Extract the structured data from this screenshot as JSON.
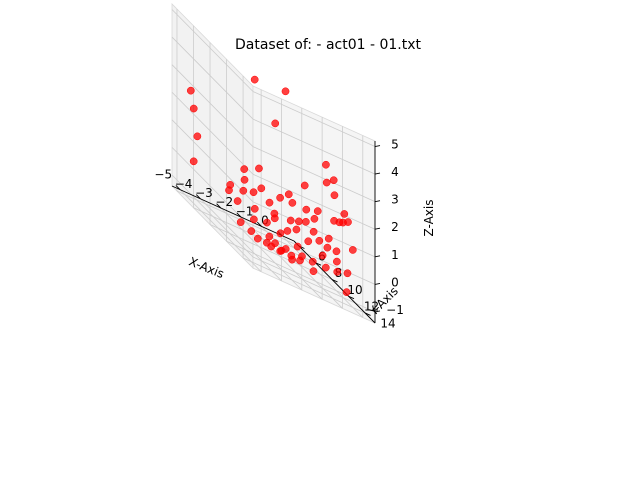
{
  "chart_data": {
    "type": "scatter",
    "title": "Dataset of:  - act01 - 01.txt",
    "xlabel": "X-Axis",
    "ylabel": "Y-Axis",
    "zlabel": "Z-Axis",
    "xlim": [
      -5.4,
      0.6
    ],
    "ylim": [
      5.4,
      15.2
    ],
    "zlim": [
      -1.4,
      5.2
    ],
    "x_ticks": [
      -5,
      -4,
      -3,
      -2,
      -1,
      0
    ],
    "y_ticks": [
      6,
      8,
      10,
      12,
      14
    ],
    "z_ticks": [
      -1,
      0,
      1,
      2,
      3,
      4,
      5
    ],
    "grid": true,
    "point_color": "#ff0000",
    "pane_color": "#f2f2f2",
    "grid_color": "#cccccc",
    "points": [
      {
        "x": -4.8,
        "y": 6.2,
        "z": 2.5
      },
      {
        "x": -4.9,
        "y": 6.8,
        "z": 2.0
      },
      {
        "x": -4.6,
        "y": 6.5,
        "z": 1.0
      },
      {
        "x": -4.7,
        "y": 6.3,
        "z": 0.0
      },
      {
        "x": -3.0,
        "y": 9.5,
        "z": 4.5
      },
      {
        "x": -2.5,
        "y": 12.0,
        "z": 5.0
      },
      {
        "x": -2.6,
        "y": 11.0,
        "z": 3.5
      },
      {
        "x": -1.0,
        "y": 13.2,
        "z": 3.2
      },
      {
        "x": -0.7,
        "y": 13.4,
        "z": 2.8
      },
      {
        "x": -0.8,
        "y": 12.8,
        "z": 2.5
      },
      {
        "x": -0.5,
        "y": 13.0,
        "z": 2.2
      },
      {
        "x": -0.3,
        "y": 13.7,
        "z": 1.8
      },
      {
        "x": -0.2,
        "y": 13.9,
        "z": 1.6
      },
      {
        "x": -0.2,
        "y": 13.3,
        "z": 1.4
      },
      {
        "x": -1.2,
        "y": 12.7,
        "z": 1.3
      },
      {
        "x": -0.6,
        "y": 13.2,
        "z": 1.3
      },
      {
        "x": -0.5,
        "y": 13.6,
        "z": 1.4
      },
      {
        "x": -1.6,
        "y": 12.3,
        "z": 1.1
      },
      {
        "x": -2.0,
        "y": 11.6,
        "z": 1.0
      },
      {
        "x": -2.4,
        "y": 11.1,
        "z": 0.9
      },
      {
        "x": -3.0,
        "y": 10.3,
        "z": 0.8
      },
      {
        "x": -3.5,
        "y": 9.5,
        "z": 0.7
      },
      {
        "x": -1.2,
        "y": 12.3,
        "z": 0.9
      },
      {
        "x": -1.5,
        "y": 12.0,
        "z": 0.6
      },
      {
        "x": -2.8,
        "y": 10.8,
        "z": 0.5
      },
      {
        "x": -3.3,
        "y": 10.1,
        "z": 0.5
      },
      {
        "x": -2.0,
        "y": 11.4,
        "z": 0.3
      },
      {
        "x": -1.2,
        "y": 12.2,
        "z": 0.4
      },
      {
        "x": -0.7,
        "y": 12.8,
        "z": 0.5
      },
      {
        "x": -0.4,
        "y": 13.0,
        "z": 0.2
      },
      {
        "x": -1.0,
        "y": 12.4,
        "z": 0.2
      },
      {
        "x": -1.8,
        "y": 11.6,
        "z": 0.1
      },
      {
        "x": -2.6,
        "y": 10.9,
        "z": 0.2
      },
      {
        "x": -3.6,
        "y": 9.6,
        "z": 0.3
      },
      {
        "x": -4.0,
        "y": 9.0,
        "z": 0.2
      },
      {
        "x": -4.1,
        "y": 9.1,
        "z": 0.0
      },
      {
        "x": -3.8,
        "y": 9.4,
        "z": -0.2
      },
      {
        "x": -3.2,
        "y": 10.0,
        "z": -0.1
      },
      {
        "x": -2.5,
        "y": 10.7,
        "z": 0.0
      },
      {
        "x": -2.0,
        "y": 11.0,
        "z": -0.2
      },
      {
        "x": -1.3,
        "y": 11.8,
        "z": -0.1
      },
      {
        "x": -0.8,
        "y": 12.3,
        "z": -0.3
      },
      {
        "x": -0.3,
        "y": 12.8,
        "z": -0.2
      },
      {
        "x": 0.2,
        "y": 13.5,
        "z": 0.6
      },
      {
        "x": 0.1,
        "y": 13.1,
        "z": -0.4
      },
      {
        "x": -0.2,
        "y": 12.6,
        "z": -0.6
      },
      {
        "x": -0.6,
        "y": 12.2,
        "z": -0.7
      },
      {
        "x": -1.0,
        "y": 11.6,
        "z": -0.8
      },
      {
        "x": -1.5,
        "y": 11.0,
        "z": -0.6
      },
      {
        "x": -2.1,
        "y": 10.4,
        "z": -0.5
      },
      {
        "x": -2.6,
        "y": 10.0,
        "z": -0.4
      },
      {
        "x": -3.0,
        "y": 9.4,
        "z": -0.6
      },
      {
        "x": -2.4,
        "y": 9.8,
        "z": -0.9
      },
      {
        "x": -1.8,
        "y": 10.3,
        "z": -1.0
      },
      {
        "x": -1.3,
        "y": 10.8,
        "z": -1.1
      },
      {
        "x": -0.8,
        "y": 11.2,
        "z": -1.2
      },
      {
        "x": -2.0,
        "y": 9.5,
        "z": -1.1
      },
      {
        "x": -1.4,
        "y": 10.0,
        "z": -1.2
      },
      {
        "x": -1.0,
        "y": 10.3,
        "z": -1.0
      },
      {
        "x": -2.2,
        "y": 9.0,
        "z": -1.3
      },
      {
        "x": -2.8,
        "y": 8.6,
        "z": -1.2
      },
      {
        "x": -1.6,
        "y": 9.3,
        "z": -1.3
      },
      {
        "x": -1.2,
        "y": 9.6,
        "z": -1.4
      },
      {
        "x": -2.4,
        "y": 8.4,
        "z": -1.4
      },
      {
        "x": -1.9,
        "y": 8.8,
        "z": -1.4
      },
      {
        "x": -3.2,
        "y": 8.3,
        "z": -1.1
      },
      {
        "x": -1.5,
        "y": 8.9,
        "z": -1.4
      },
      {
        "x": 0.3,
        "y": 12.5,
        "z": -1.2
      },
      {
        "x": -0.4,
        "y": 11.9,
        "z": 0.0
      },
      {
        "x": -1.6,
        "y": 11.4,
        "z": 0.4
      },
      {
        "x": -2.3,
        "y": 11.9,
        "z": 1.3
      },
      {
        "x": -3.4,
        "y": 11.0,
        "z": 1.6
      },
      {
        "x": -3.8,
        "y": 10.2,
        "z": 1.2
      },
      {
        "x": -1.8,
        "y": 12.6,
        "z": 2.0
      }
    ]
  }
}
